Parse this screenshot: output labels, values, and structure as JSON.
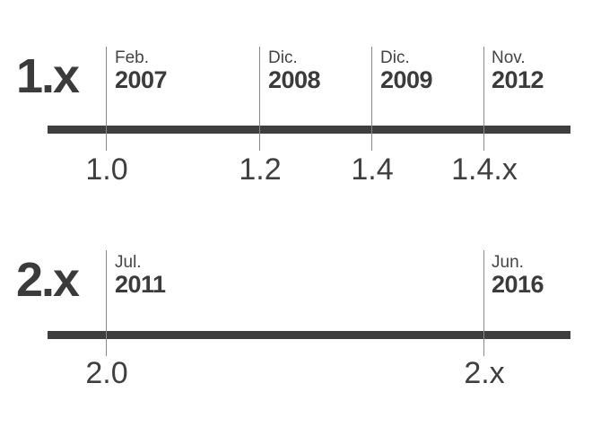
{
  "timelines": [
    {
      "label": "1.x",
      "milestones": [
        {
          "month": "Feb.",
          "year": "2007",
          "version": "1.0"
        },
        {
          "month": "Dic.",
          "year": "2008",
          "version": "1.2"
        },
        {
          "month": "Dic.",
          "year": "2009",
          "version": "1.4"
        },
        {
          "month": "Nov.",
          "year": "2012",
          "version": "1.4.x"
        }
      ]
    },
    {
      "label": "2.x",
      "milestones": [
        {
          "month": "Jul.",
          "year": "2011",
          "version": "2.0"
        },
        {
          "month": "Jun.",
          "year": "2016",
          "version": "2.x"
        }
      ]
    }
  ],
  "colors": {
    "bar": "#3f3f3f",
    "tick": "#8a8a8a",
    "text": "#3f3f3f"
  }
}
